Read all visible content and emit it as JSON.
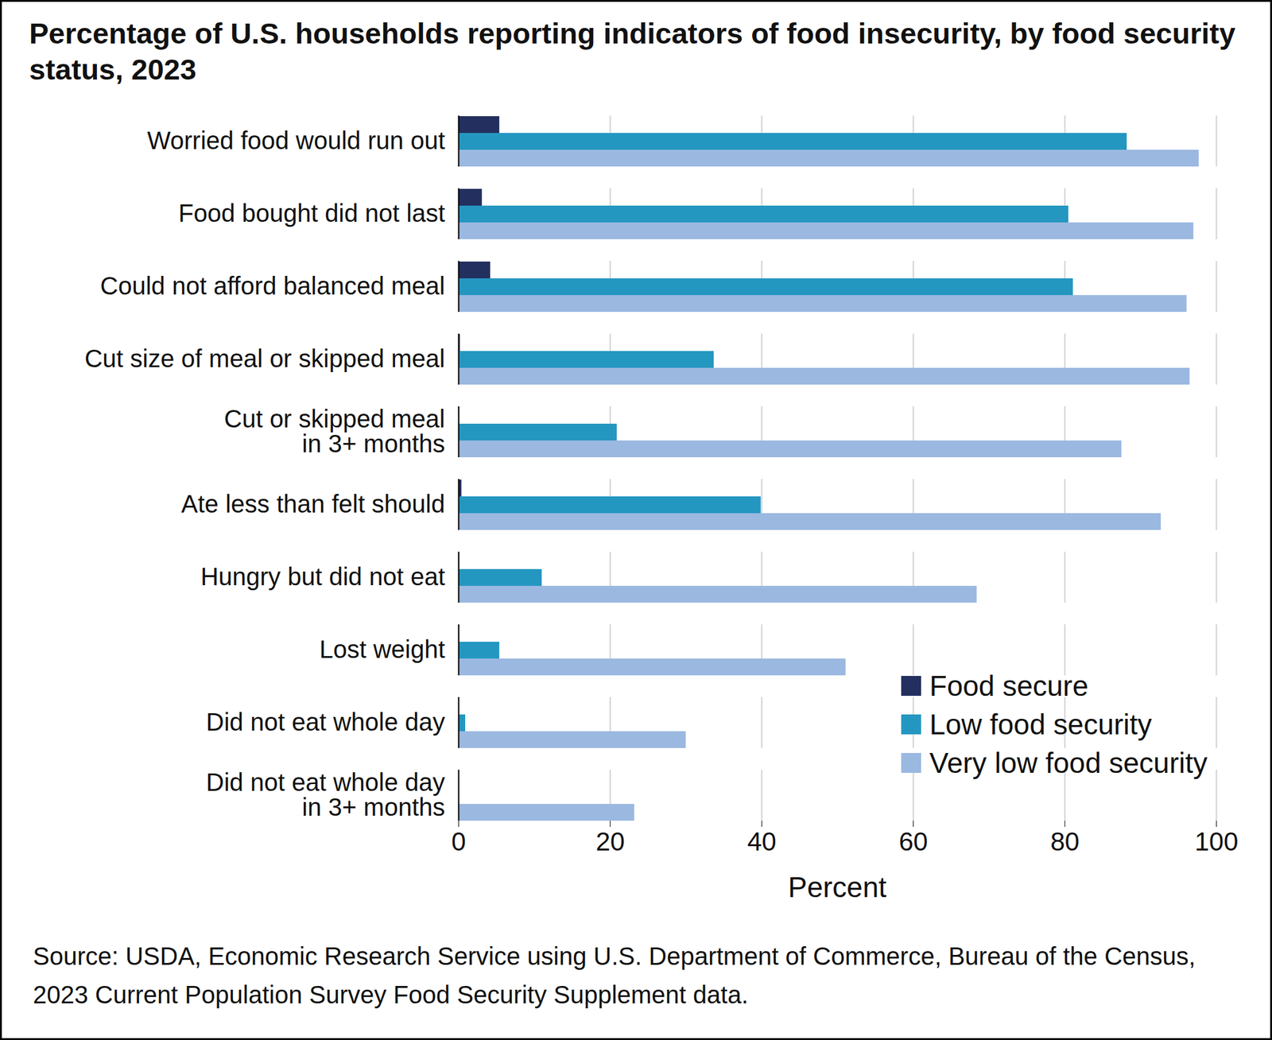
{
  "chart_data": {
    "type": "bar",
    "orientation": "horizontal",
    "title": "Percentage of U.S. households reporting indicators of food insecurity, by food security status, 2023",
    "categories": [
      "Worried food would run out",
      "Food bought did not last",
      "Could not afford balanced meal",
      "Cut size of meal or skipped meal",
      "Cut or skipped meal\nin 3+ months",
      "Ate less than felt should",
      "Hungry but did not eat",
      "Lost weight",
      "Did not eat whole day",
      "Did not eat whole day\nin 3+ months"
    ],
    "series": [
      {
        "name": "Food secure",
        "color": "#232f5e",
        "values": [
          5.4,
          3.1,
          4.2,
          0.2,
          0.1,
          0.4,
          0.1,
          0.1,
          0,
          0
        ]
      },
      {
        "name": "Low food security",
        "color": "#2497c1",
        "values": [
          88.2,
          80.5,
          81.1,
          33.7,
          20.9,
          39.9,
          11.0,
          5.4,
          0.9,
          0
        ]
      },
      {
        "name": "Very low food security",
        "color": "#9bb8e0",
        "values": [
          97.7,
          97.0,
          96.1,
          96.5,
          87.5,
          92.7,
          68.4,
          51.1,
          30.0,
          23.2
        ]
      }
    ],
    "xlim": [
      0,
      100
    ],
    "xticks": [
      0,
      20,
      40,
      60,
      80,
      100
    ],
    "x_label": "Percent",
    "grid": true,
    "legend": "lower right",
    "caption": "Source: USDA, Economic Research Service using U.S. Department of Commerce, Bureau of the Census, 2023 Current Population Survey Food Security Supplement data."
  }
}
